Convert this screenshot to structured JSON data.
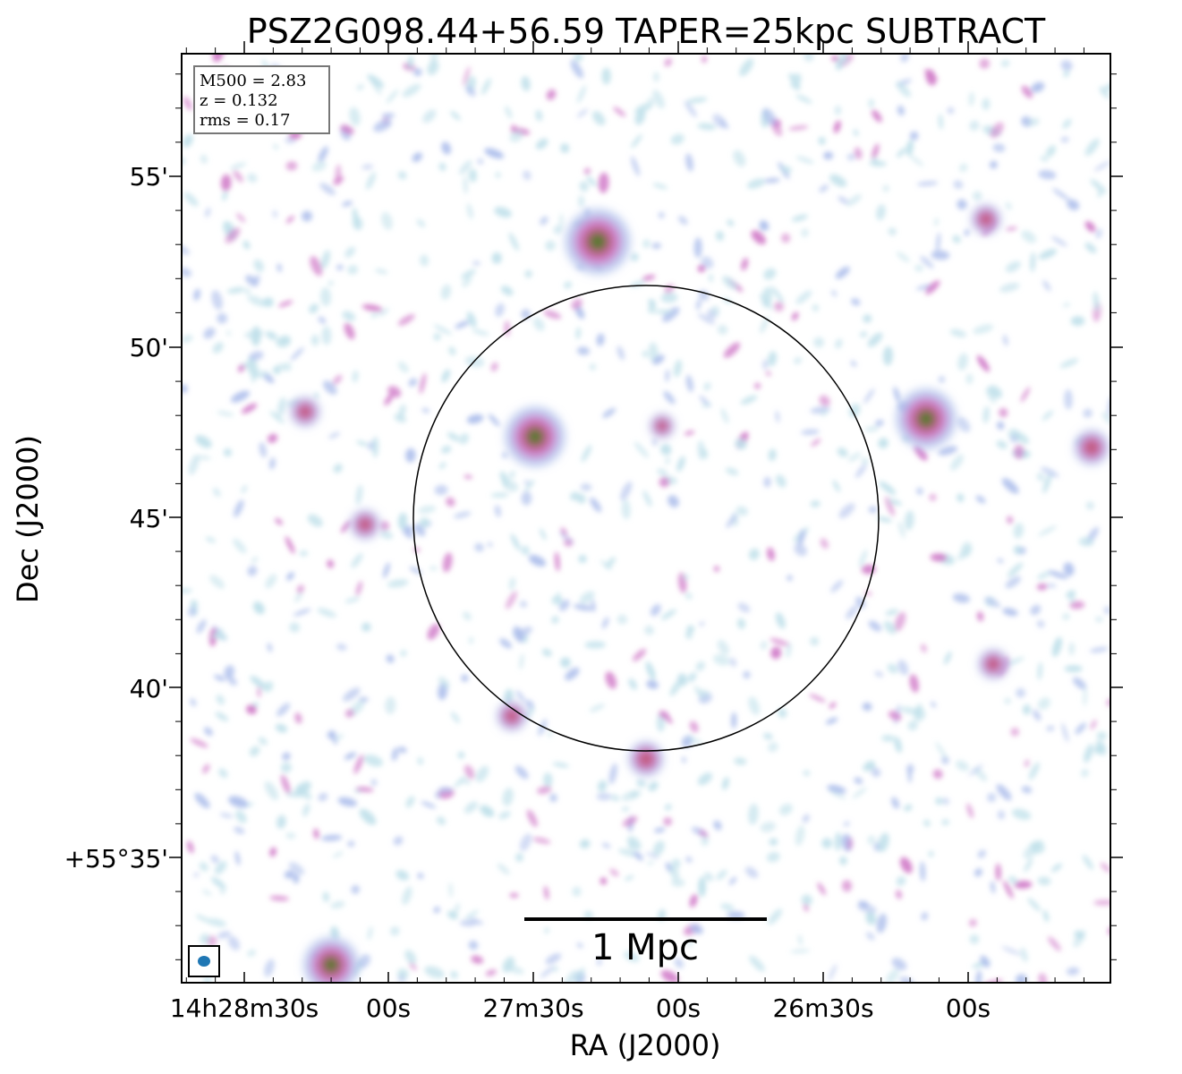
{
  "chart_data": {
    "type": "heatmap",
    "title": "PSZ2G098.44+56.59 TAPER=25kpc SUBTRACT",
    "xlabel": "RA (J2000)",
    "ylabel": "Dec (J2000)",
    "x_tick_labels": [
      "14h28m30s",
      "00s",
      "27m30s",
      "00s",
      "26m30s",
      "00s"
    ],
    "y_tick_labels": [
      "55'",
      "50'",
      "45'",
      "40'",
      "+55°35'"
    ],
    "info_box": [
      "M500 = 2.83",
      "z = 0.132",
      "rms = 0.17"
    ],
    "scalebar_label": "1 Mpc",
    "colors": {
      "faint": "#bfe0ea",
      "low": "#aebfec",
      "mid": "#d07ac8",
      "high": "#c05a7a",
      "peak": "#4f7a2a",
      "beam": "#1f77b4"
    },
    "overlays": [
      "circle-region",
      "beam-ellipse",
      "scale-bar"
    ]
  }
}
